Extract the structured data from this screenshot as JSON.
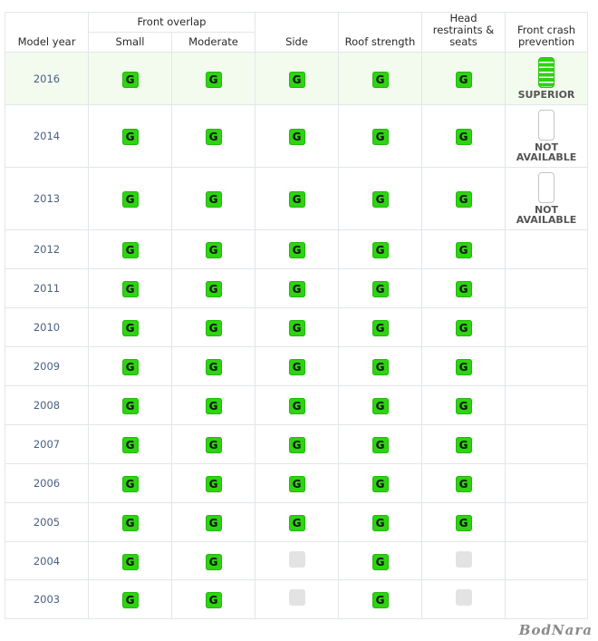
{
  "header": {
    "model_year": "Model year",
    "front_overlap": "Front overlap",
    "small": "Small",
    "moderate": "Moderate",
    "side": "Side",
    "roof_strength": "Roof strength",
    "head_restraints": "Head restraints & seats",
    "front_crash": "Front crash prevention"
  },
  "colors": {
    "good": "#2ed311",
    "not_tested": "#e3e3e3",
    "year_text": "#4a5f82",
    "highlight_row": "#f3fbee"
  },
  "rows": [
    {
      "year": "2016",
      "small": "G",
      "moderate": "G",
      "side": "G",
      "roof": "G",
      "head": "G",
      "fcp": "SUPERIOR"
    },
    {
      "year": "2014",
      "small": "G",
      "moderate": "G",
      "side": "G",
      "roof": "G",
      "head": "G",
      "fcp": "NOT AVAILABLE"
    },
    {
      "year": "2013",
      "small": "G",
      "moderate": "G",
      "side": "G",
      "roof": "G",
      "head": "G",
      "fcp": "NOT AVAILABLE"
    },
    {
      "year": "2012",
      "small": "G",
      "moderate": "G",
      "side": "G",
      "roof": "G",
      "head": "G",
      "fcp": ""
    },
    {
      "year": "2011",
      "small": "G",
      "moderate": "G",
      "side": "G",
      "roof": "G",
      "head": "G",
      "fcp": ""
    },
    {
      "year": "2010",
      "small": "G",
      "moderate": "G",
      "side": "G",
      "roof": "G",
      "head": "G",
      "fcp": ""
    },
    {
      "year": "2009",
      "small": "G",
      "moderate": "G",
      "side": "G",
      "roof": "G",
      "head": "G",
      "fcp": ""
    },
    {
      "year": "2008",
      "small": "G",
      "moderate": "G",
      "side": "G",
      "roof": "G",
      "head": "G",
      "fcp": ""
    },
    {
      "year": "2007",
      "small": "G",
      "moderate": "G",
      "side": "G",
      "roof": "G",
      "head": "G",
      "fcp": ""
    },
    {
      "year": "2006",
      "small": "G",
      "moderate": "G",
      "side": "G",
      "roof": "G",
      "head": "G",
      "fcp": ""
    },
    {
      "year": "2005",
      "small": "G",
      "moderate": "G",
      "side": "G",
      "roof": "G",
      "head": "G",
      "fcp": ""
    },
    {
      "year": "2004",
      "small": "G",
      "moderate": "G",
      "side": "",
      "roof": "G",
      "head": "",
      "fcp": ""
    },
    {
      "year": "2003",
      "small": "G",
      "moderate": "G",
      "side": "",
      "roof": "G",
      "head": "",
      "fcp": ""
    }
  ],
  "watermark": "BodNara"
}
